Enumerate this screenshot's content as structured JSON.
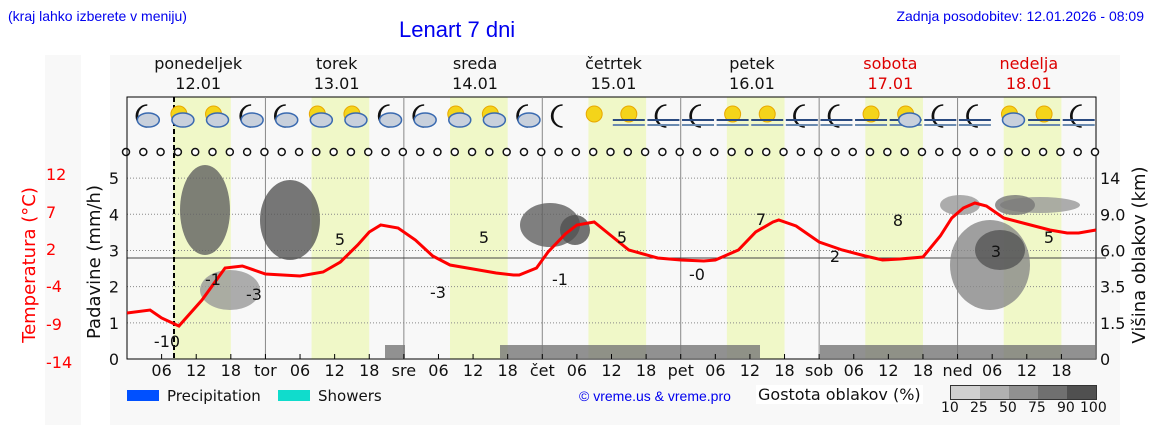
{
  "header": {
    "left_note": "(kraj lahko izberete v meniju)",
    "title": "Lenart 7 dni",
    "last_update": "Zadnja posodobitev: 12.01.2026 - 08:09"
  },
  "days": [
    {
      "name": "ponedeljek",
      "date": "12.01",
      "weekend": false
    },
    {
      "name": "torek",
      "date": "13.01",
      "weekend": false
    },
    {
      "name": "sreda",
      "date": "14.01",
      "weekend": false
    },
    {
      "name": "četrtek",
      "date": "15.01",
      "weekend": false
    },
    {
      "name": "petek",
      "date": "16.01",
      "weekend": false
    },
    {
      "name": "sobota",
      "date": "17.01",
      "weekend": true
    },
    {
      "name": "nedelja",
      "date": "18.01",
      "weekend": true
    }
  ],
  "x_ticks": [
    "06",
    "12",
    "18",
    "tor",
    "06",
    "12",
    "18",
    "sre",
    "06",
    "12",
    "18",
    "čet",
    "06",
    "12",
    "18",
    "pet",
    "06",
    "12",
    "18",
    "sob",
    "06",
    "12",
    "18",
    "ned",
    "06",
    "12",
    "18"
  ],
  "axes": {
    "temp_label": "Temperatura (°C)",
    "precip_label": "Padavine (mm/h)",
    "cloud_height_label": "Višina oblakov (km)",
    "temp_ticks": [
      "12",
      "7",
      "2",
      "-4",
      "-9",
      "-14"
    ],
    "precip_ticks": [
      "5",
      "4",
      "3",
      "2",
      "1",
      "0"
    ],
    "height_ticks": [
      "14",
      "9.0",
      "6.0",
      "3.5",
      "1.5",
      "0"
    ],
    "zero_line_label": "4"
  },
  "legend": {
    "precipitation": "Precipitation",
    "showers": "Showers",
    "precipitation_color": "#0050ff",
    "showers_color": "#10dccc",
    "copyright": "© vreme.us & vreme.pro",
    "cloud_density_label": "Gostota oblakov (%)",
    "cloud_density_ticks": [
      "10",
      "25",
      "50",
      "75",
      "90",
      "100"
    ]
  },
  "colors": {
    "temperature_line": "#ff0000",
    "day_band": "#f0f8c8",
    "weekend_text": "#dd0000",
    "link_blue": "#0000ee"
  },
  "chart_data": {
    "type": "line",
    "title": "Lenart 7 dni",
    "xlabel": "",
    "ylabel": "Temperatura (°C)",
    "ylim": [
      -14,
      12
    ],
    "x": [
      "12.01 00",
      "12.01 06",
      "12.01 08",
      "12.01 12",
      "12.01 18",
      "13.01 00",
      "13.01 06",
      "13.01 12",
      "13.01 18",
      "14.01 00",
      "14.01 06",
      "14.01 12",
      "14.01 18",
      "15.01 00",
      "15.01 06",
      "15.01 12",
      "15.01 18",
      "16.01 00",
      "16.01 06",
      "16.01 12",
      "16.01 18",
      "17.01 00",
      "17.01 06",
      "17.01 12",
      "17.01 18",
      "18.01 00",
      "18.01 06",
      "18.01 12",
      "18.01 18",
      "18.01 24"
    ],
    "series": [
      {
        "name": "Temperatura",
        "values": [
          -7,
          -8,
          -10,
          -1,
          -3,
          -3,
          -1,
          5,
          1,
          -1,
          -3,
          5,
          1,
          0,
          -1,
          5,
          1,
          0,
          0,
          7,
          4,
          3,
          2,
          8,
          5,
          4,
          3,
          5,
          5,
          4
        ]
      }
    ],
    "annotations": [
      {
        "label": "-10",
        "x": "12.01 08"
      },
      {
        "label": "-1",
        "x": "12.01 12"
      },
      {
        "label": "-3",
        "x": "12.01 21"
      },
      {
        "label": "5",
        "x": "13.01 13"
      },
      {
        "label": "-3",
        "x": "14.01 03"
      },
      {
        "label": "5",
        "x": "14.01 13"
      },
      {
        "label": "-1",
        "x": "15.01 04"
      },
      {
        "label": "5",
        "x": "15.01 13"
      },
      {
        "label": "-0",
        "x": "16.01 04"
      },
      {
        "label": "7",
        "x": "16.01 15"
      },
      {
        "label": "2",
        "x": "17.01 03"
      },
      {
        "label": "8",
        "x": "17.01 15"
      },
      {
        "label": "3",
        "x": "18.01 04"
      },
      {
        "label": "5",
        "x": "18.01 15"
      }
    ],
    "secondary_axes": {
      "precipitation_mm_h": [
        0,
        5
      ],
      "cloud_height_km": [
        "0",
        "1.5",
        "3.5",
        "6.0",
        "9.0",
        "14"
      ]
    },
    "precipitation_values": "none visible",
    "grid": true
  }
}
